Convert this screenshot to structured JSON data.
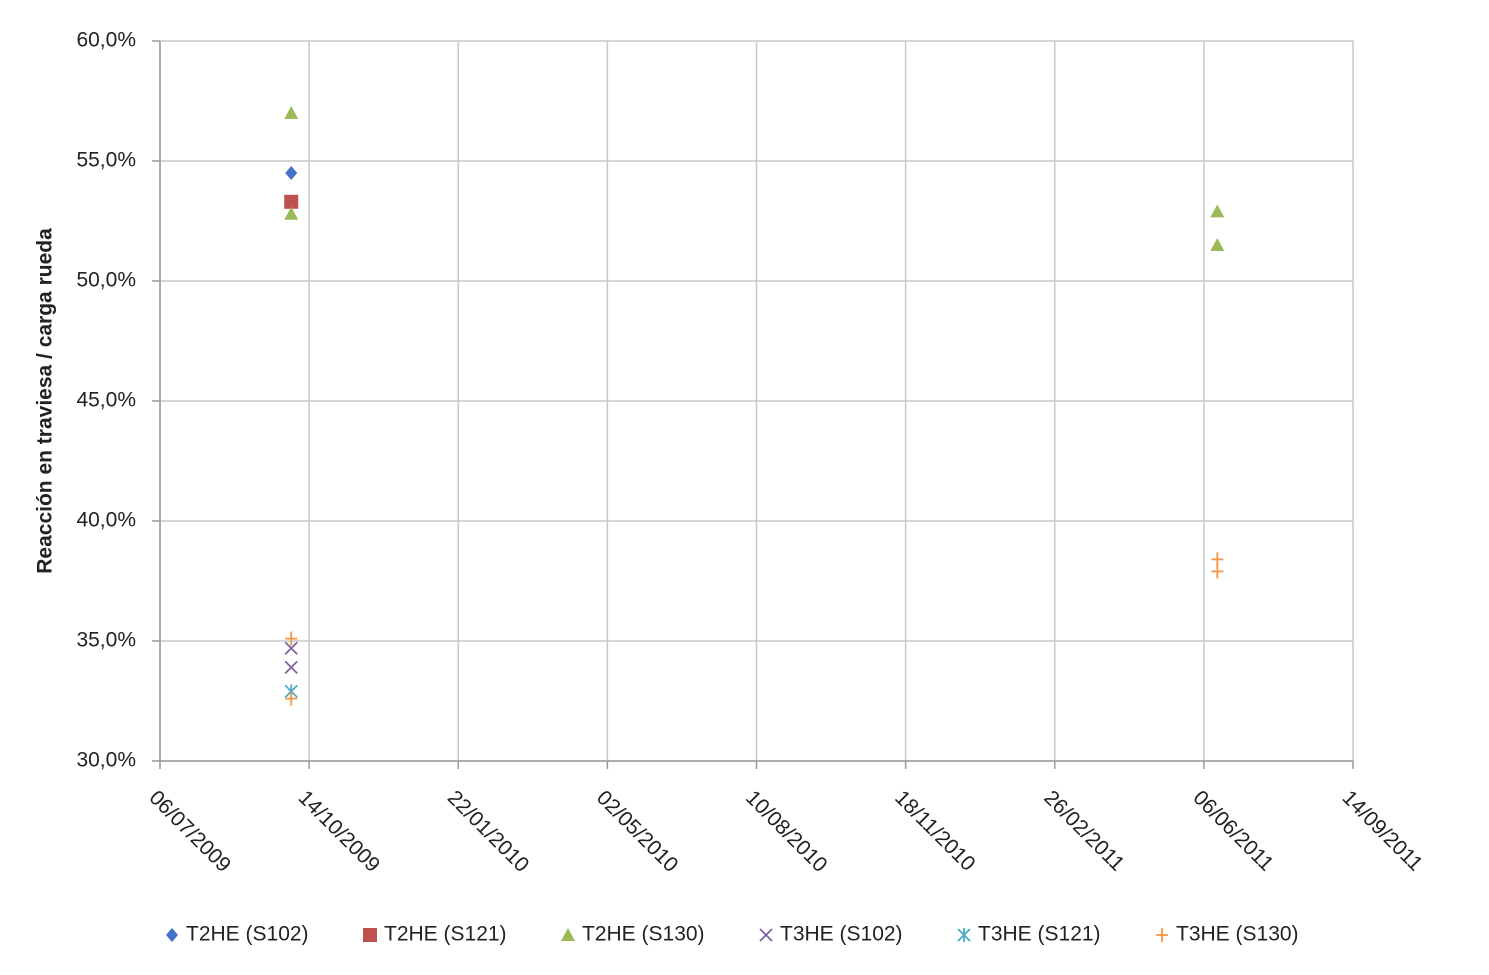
{
  "chart_data": {
    "type": "scatter",
    "y_label": "Reacción en traviesa / carga rueda",
    "xlim": [
      "06/07/2009",
      "14/09/2011"
    ],
    "xticks": [
      "06/07/2009",
      "14/10/2009",
      "22/01/2010",
      "02/05/2010",
      "10/08/2010",
      "18/11/2010",
      "26/02/2011",
      "06/06/2011",
      "14/09/2011"
    ],
    "ylim": [
      30,
      60
    ],
    "yticks": [
      {
        "value": 30,
        "label": "30,0%"
      },
      {
        "value": 35,
        "label": "35,0%"
      },
      {
        "value": 40,
        "label": "40,0%"
      },
      {
        "value": 45,
        "label": "45,0%"
      },
      {
        "value": 50,
        "label": "50,0%"
      },
      {
        "value": 55,
        "label": "55,0%"
      },
      {
        "value": 60,
        "label": "60,0%"
      }
    ],
    "grid": true,
    "legend": "bottom",
    "series": [
      {
        "name": "T2HE (S102)",
        "color": "#4472c4",
        "marker": "diamond",
        "x": [
          "02/10/2009"
        ],
        "values": [
          54.5
        ]
      },
      {
        "name": "T2HE (S121)",
        "color": "#c0504d",
        "marker": "square",
        "x": [
          "02/10/2009"
        ],
        "values": [
          53.3
        ]
      },
      {
        "name": "T2HE (S130)",
        "color": "#9bbb59",
        "marker": "triangle",
        "x": [
          "02/10/2009",
          "02/10/2009",
          "15/06/2011",
          "15/06/2011"
        ],
        "values": [
          57.0,
          52.8,
          52.9,
          51.5
        ]
      },
      {
        "name": "T3HE (S102)",
        "color": "#8064a2",
        "marker": "x",
        "x": [
          "02/10/2009",
          "02/10/2009"
        ],
        "values": [
          34.7,
          33.9
        ]
      },
      {
        "name": "T3HE (S121)",
        "color": "#4bacc6",
        "marker": "star",
        "x": [
          "02/10/2009"
        ],
        "values": [
          32.9
        ]
      },
      {
        "name": "T3HE (S130)",
        "color": "#f79646",
        "marker": "plus",
        "x": [
          "02/10/2009",
          "02/10/2009",
          "15/06/2011",
          "15/06/2011"
        ],
        "values": [
          35.1,
          32.6,
          38.4,
          37.9
        ]
      }
    ]
  }
}
